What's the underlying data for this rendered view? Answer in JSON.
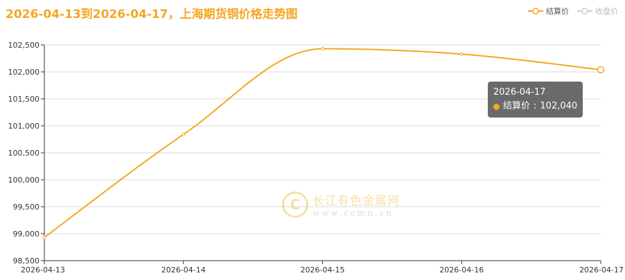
{
  "title": "2026-04-13到2026-04-17，上海期货铜价格走势图",
  "legend": [
    {
      "name": "结算价",
      "active": true,
      "color": "#f5a623"
    },
    {
      "name": "收盘价",
      "active": false,
      "color": "#cccccc"
    }
  ],
  "watermark": {
    "name": "长江有色金属网",
    "url": "www.ccmn.cn",
    "logo_letter": "C"
  },
  "tooltip": {
    "date": "2026-04-17",
    "series": "结算价",
    "value": "102,040"
  },
  "chart_data": {
    "type": "line",
    "x": [
      "2026-04-13",
      "2026-04-14",
      "2026-04-15",
      "2026-04-16",
      "2026-04-17"
    ],
    "series": [
      {
        "name": "结算价",
        "values": [
          98930,
          100840,
          102430,
          102330,
          102040
        ],
        "color": "#f5a623"
      }
    ],
    "yticks": [
      98500,
      99000,
      99500,
      100000,
      100500,
      101000,
      101500,
      102000,
      102500
    ],
    "ytick_labels": [
      "98,500",
      "99,000",
      "99,500",
      "100,000",
      "100,500",
      "101,000",
      "101,500",
      "102,000",
      "102,500"
    ],
    "ylim": [
      98500,
      102500
    ],
    "grid": true,
    "highlighted_index": 4
  }
}
